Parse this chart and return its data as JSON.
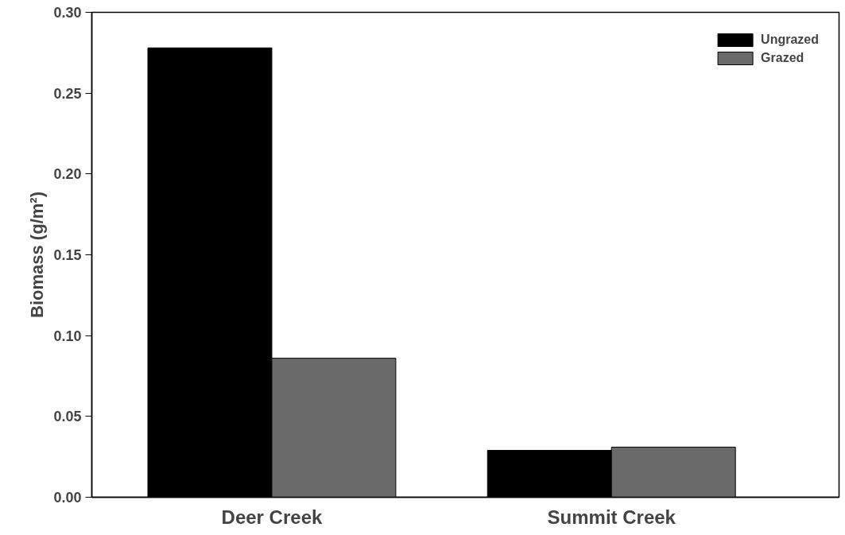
{
  "chart_data": {
    "type": "bar",
    "ylabel": "Biomass (g/m²)",
    "categories": [
      "Deer Creek",
      "Summit Creek"
    ],
    "series": [
      {
        "name": "Ungrazed",
        "color": "#000000",
        "values": [
          0.278,
          0.029
        ]
      },
      {
        "name": "Grazed",
        "color": "#6a6a6a",
        "values": [
          0.086,
          0.031
        ]
      }
    ],
    "ylim": [
      0,
      0.3
    ],
    "yticks": [
      {
        "value": 0,
        "label": "0.00"
      },
      {
        "value": 0.05,
        "label": "0.05"
      },
      {
        "value": 0.1,
        "label": "0.10"
      },
      {
        "value": 0.15,
        "label": "0.15"
      },
      {
        "value": 0.2,
        "label": "0.20"
      },
      {
        "value": 0.25,
        "label": "0.25"
      },
      {
        "value": 0.3,
        "label": "0.30"
      }
    ],
    "grid": false,
    "legend": "top right"
  }
}
